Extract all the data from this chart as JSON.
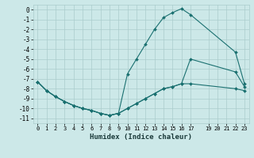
{
  "xlabel": "Humidex (Indice chaleur)",
  "background_color": "#cce8e8",
  "grid_color": "#aacccc",
  "line_color": "#1a7070",
  "xlim": [
    -0.5,
    23.5
  ],
  "ylim": [
    -11.5,
    0.5
  ],
  "xticks": [
    0,
    1,
    2,
    3,
    4,
    5,
    6,
    7,
    8,
    9,
    10,
    11,
    12,
    13,
    14,
    15,
    16,
    17,
    19,
    20,
    21,
    22,
    23
  ],
  "xtick_labels": [
    "0",
    "1",
    "2",
    "3",
    "4",
    "5",
    "6",
    "7",
    "8",
    "9",
    "10",
    "11",
    "12",
    "13",
    "14",
    "15",
    "16",
    "17",
    "19",
    "20",
    "21",
    "22",
    "23"
  ],
  "yticks": [
    0,
    -1,
    -2,
    -3,
    -4,
    -5,
    -6,
    -7,
    -8,
    -9,
    -10,
    -11
  ],
  "line1_x": [
    0,
    1,
    2,
    3,
    4,
    5,
    6,
    7,
    8,
    9,
    10,
    11,
    12,
    13,
    14,
    15,
    16,
    17,
    22,
    23
  ],
  "line1_y": [
    -7.3,
    -8.2,
    -8.8,
    -9.3,
    -9.7,
    -10.0,
    -10.2,
    -10.5,
    -10.7,
    -10.5,
    -10.0,
    -9.5,
    -9.0,
    -8.5,
    -8.0,
    -7.8,
    -7.5,
    -7.5,
    -8.0,
    -8.2
  ],
  "line2_x": [
    0,
    1,
    2,
    3,
    4,
    5,
    6,
    7,
    8,
    9,
    10,
    11,
    12,
    13,
    14,
    15,
    16,
    17,
    22,
    23
  ],
  "line2_y": [
    -7.3,
    -8.2,
    -8.8,
    -9.3,
    -9.7,
    -10.0,
    -10.2,
    -10.5,
    -10.7,
    -10.5,
    -6.5,
    -5.0,
    -3.5,
    -2.0,
    -0.8,
    -0.3,
    0.1,
    -0.5,
    -4.3,
    -7.5
  ],
  "line3_x": [
    0,
    1,
    2,
    3,
    4,
    5,
    6,
    7,
    8,
    9,
    10,
    11,
    12,
    13,
    14,
    15,
    16,
    17,
    22,
    23
  ],
  "line3_y": [
    -7.3,
    -8.2,
    -8.8,
    -9.3,
    -9.7,
    -10.0,
    -10.2,
    -10.5,
    -10.7,
    -10.5,
    -10.0,
    -9.5,
    -9.0,
    -8.5,
    -8.0,
    -7.8,
    -7.5,
    -5.0,
    -6.3,
    -7.8
  ]
}
